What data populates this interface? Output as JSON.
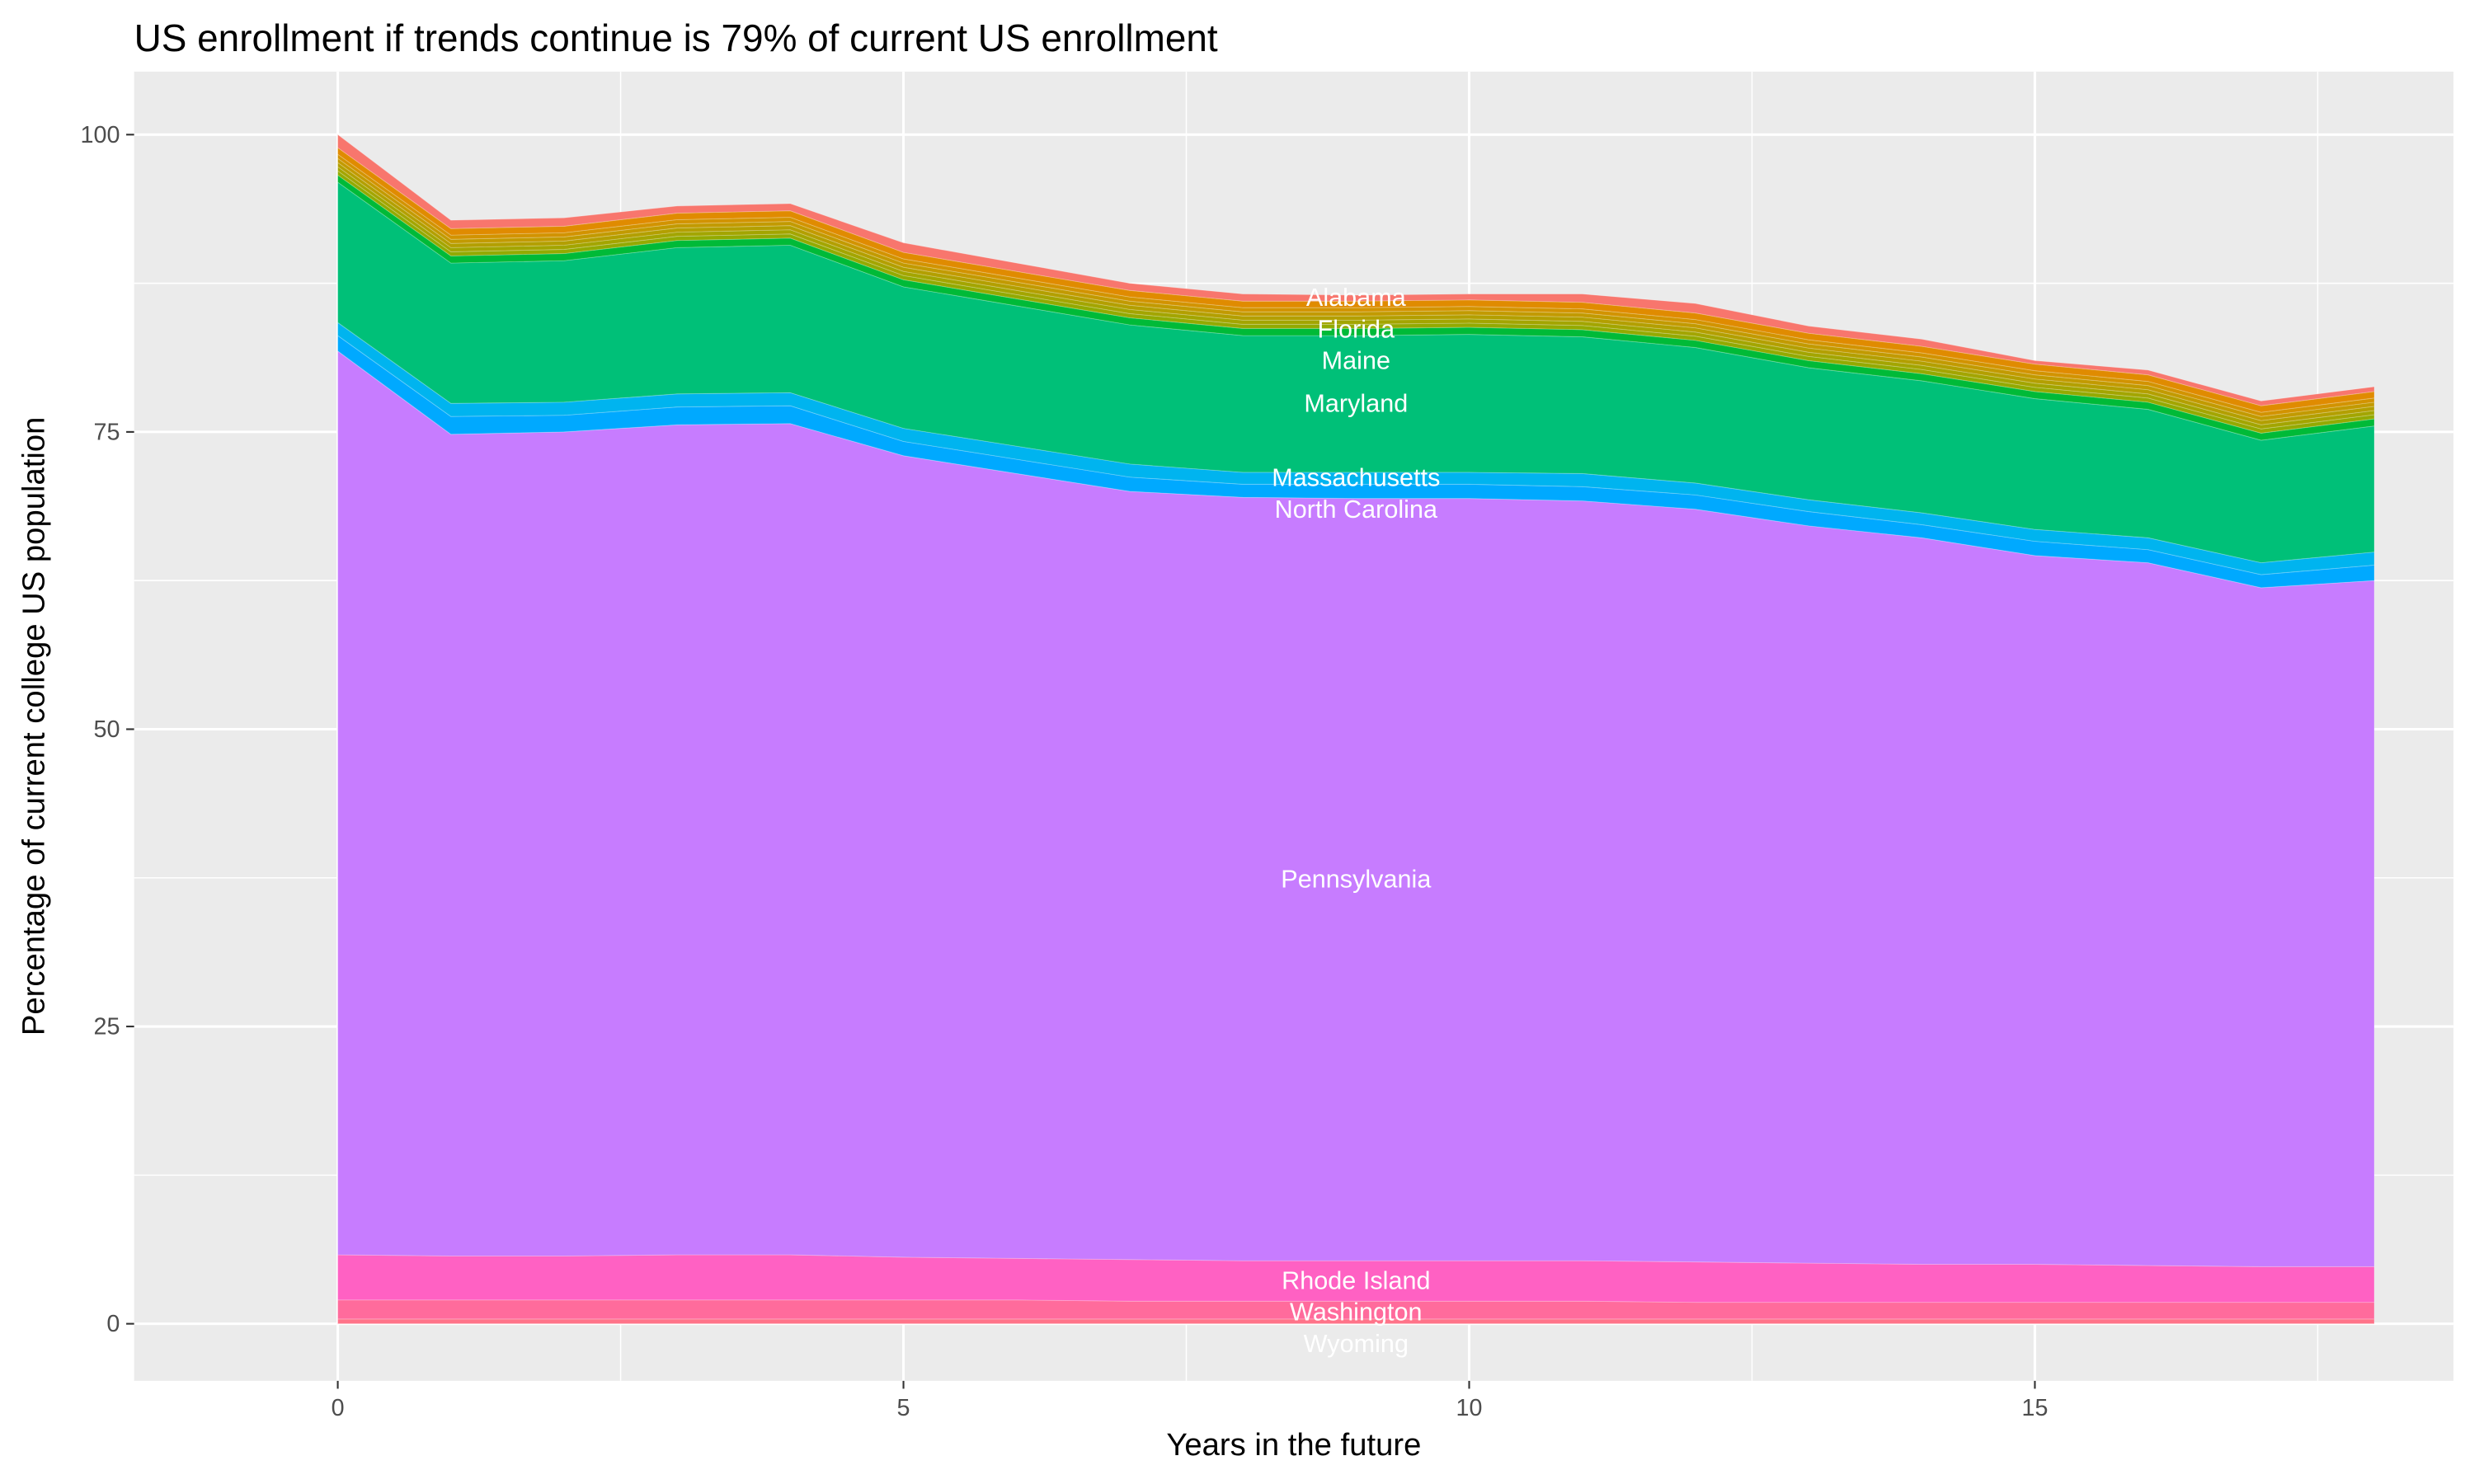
{
  "chart_data": {
    "type": "area",
    "stacked": true,
    "title": "US enrollment if trends continue is 79% of current US enrollment",
    "xlabel": "Years in the future",
    "ylabel": "Percentage of current college US population",
    "xlim": [
      -1.8,
      18.7
    ],
    "ylim": [
      -4.8,
      105.3
    ],
    "x_ticks": [
      0,
      5,
      10,
      15
    ],
    "y_ticks": [
      0,
      25,
      50,
      75,
      100
    ],
    "x_tick_labels": [
      "0",
      "5",
      "10",
      "15"
    ],
    "y_tick_labels": [
      "0",
      "25",
      "50",
      "75",
      "100"
    ],
    "grid": true,
    "legend": "none",
    "background": "#EBEBEB",
    "x": [
      0,
      1,
      2,
      3,
      4,
      5,
      6,
      7,
      8,
      9,
      10,
      11,
      12,
      13,
      14,
      15,
      16,
      17,
      18
    ],
    "series_order": "top-to-bottom",
    "series": [
      {
        "name": "Alabama",
        "color": "#F8766D",
        "values": [
          1.1,
          0.7,
          0.7,
          0.6,
          0.6,
          0.8,
          0.7,
          0.6,
          0.6,
          0.5,
          0.5,
          0.7,
          0.8,
          0.6,
          0.6,
          0.3,
          0.4,
          0.4,
          0.4
        ]
      },
      {
        "color": "#E08B00",
        "values": [
          0.55,
          0.55,
          0.55,
          0.55,
          0.55,
          0.55,
          0.55,
          0.55,
          0.55,
          0.55,
          0.55,
          0.55,
          0.55,
          0.55,
          0.55,
          0.55,
          0.55,
          0.55,
          0.55
        ]
      },
      {
        "color": "#D29300",
        "values": [
          0.35,
          0.35,
          0.35,
          0.35,
          0.35,
          0.35,
          0.35,
          0.35,
          0.35,
          0.35,
          0.35,
          0.35,
          0.35,
          0.35,
          0.35,
          0.35,
          0.35,
          0.35,
          0.35
        ]
      },
      {
        "color": "#C29A00",
        "values": [
          0.35,
          0.35,
          0.35,
          0.35,
          0.35,
          0.35,
          0.35,
          0.35,
          0.35,
          0.35,
          0.35,
          0.35,
          0.35,
          0.35,
          0.35,
          0.35,
          0.35,
          0.35,
          0.35
        ]
      },
      {
        "name": "Florida",
        "color": "#B39F00",
        "values": [
          0.35,
          0.35,
          0.35,
          0.35,
          0.35,
          0.35,
          0.35,
          0.35,
          0.35,
          0.35,
          0.35,
          0.35,
          0.35,
          0.35,
          0.35,
          0.35,
          0.35,
          0.35,
          0.35
        ]
      },
      {
        "color": "#A3A500",
        "values": [
          0.35,
          0.35,
          0.35,
          0.35,
          0.35,
          0.35,
          0.35,
          0.35,
          0.35,
          0.35,
          0.35,
          0.35,
          0.35,
          0.35,
          0.35,
          0.35,
          0.35,
          0.35,
          0.35
        ]
      },
      {
        "color": "#93AA00",
        "values": [
          0.35,
          0.35,
          0.35,
          0.35,
          0.35,
          0.35,
          0.35,
          0.35,
          0.35,
          0.35,
          0.35,
          0.35,
          0.35,
          0.35,
          0.35,
          0.35,
          0.35,
          0.35,
          0.35
        ]
      },
      {
        "name": "Maine",
        "color": "#00BA38",
        "values": [
          0.6,
          0.6,
          0.6,
          0.6,
          0.6,
          0.6,
          0.6,
          0.6,
          0.6,
          0.6,
          0.6,
          0.6,
          0.6,
          0.6,
          0.6,
          0.6,
          0.6,
          0.6,
          0.6
        ]
      },
      {
        "name": "Maryland",
        "color": "#00C078",
        "values": [
          11.8,
          11.8,
          11.9,
          12.3,
          12.4,
          11.9,
          11.8,
          11.7,
          11.5,
          11.5,
          11.6,
          11.5,
          11.4,
          11.1,
          11.1,
          11.0,
          10.8,
          10.3,
          10.6
        ]
      },
      {
        "name": "Massachusetts",
        "color": "#00B4EF",
        "values": [
          1.1,
          1.1,
          1.1,
          1.1,
          1.1,
          1.1,
          1.1,
          1.1,
          1.0,
          1.0,
          1.0,
          1.1,
          1.0,
          1.0,
          1.0,
          1.0,
          1.0,
          1.0,
          1.1
        ]
      },
      {
        "name": "North Carolina",
        "color": "#00A9FF",
        "values": [
          1.3,
          1.5,
          1.4,
          1.5,
          1.5,
          1.2,
          1.2,
          1.2,
          1.1,
          1.2,
          1.2,
          1.2,
          1.2,
          1.2,
          1.1,
          1.2,
          1.1,
          1.1,
          1.3
        ]
      },
      {
        "name": "Pennsylvania",
        "color": "#C77CFF",
        "values": [
          76.0,
          69.1,
          69.3,
          69.8,
          69.9,
          67.4,
          66.0,
          64.6,
          64.2,
          64.1,
          64.1,
          63.9,
          63.3,
          62.0,
          61.1,
          59.6,
          59.1,
          57.1,
          57.7
        ]
      },
      {
        "name": "Rhode Island",
        "color": "#FF61C3",
        "values": [
          3.8,
          3.7,
          3.7,
          3.8,
          3.8,
          3.6,
          3.5,
          3.5,
          3.4,
          3.4,
          3.4,
          3.4,
          3.4,
          3.3,
          3.2,
          3.2,
          3.1,
          3.0,
          3.0
        ]
      },
      {
        "name": "Washington",
        "color": "#FF6B9C",
        "values": [
          1.6,
          1.6,
          1.6,
          1.6,
          1.6,
          1.6,
          1.6,
          1.5,
          1.5,
          1.5,
          1.5,
          1.5,
          1.4,
          1.4,
          1.4,
          1.4,
          1.4,
          1.4,
          1.4
        ]
      },
      {
        "name": "Wyoming",
        "color": "#FF7389",
        "values": [
          0.4,
          0.4,
          0.4,
          0.4,
          0.4,
          0.4,
          0.4,
          0.4,
          0.4,
          0.4,
          0.4,
          0.4,
          0.4,
          0.4,
          0.4,
          0.4,
          0.4,
          0.4,
          0.4
        ]
      }
    ],
    "label_x": 9
  }
}
